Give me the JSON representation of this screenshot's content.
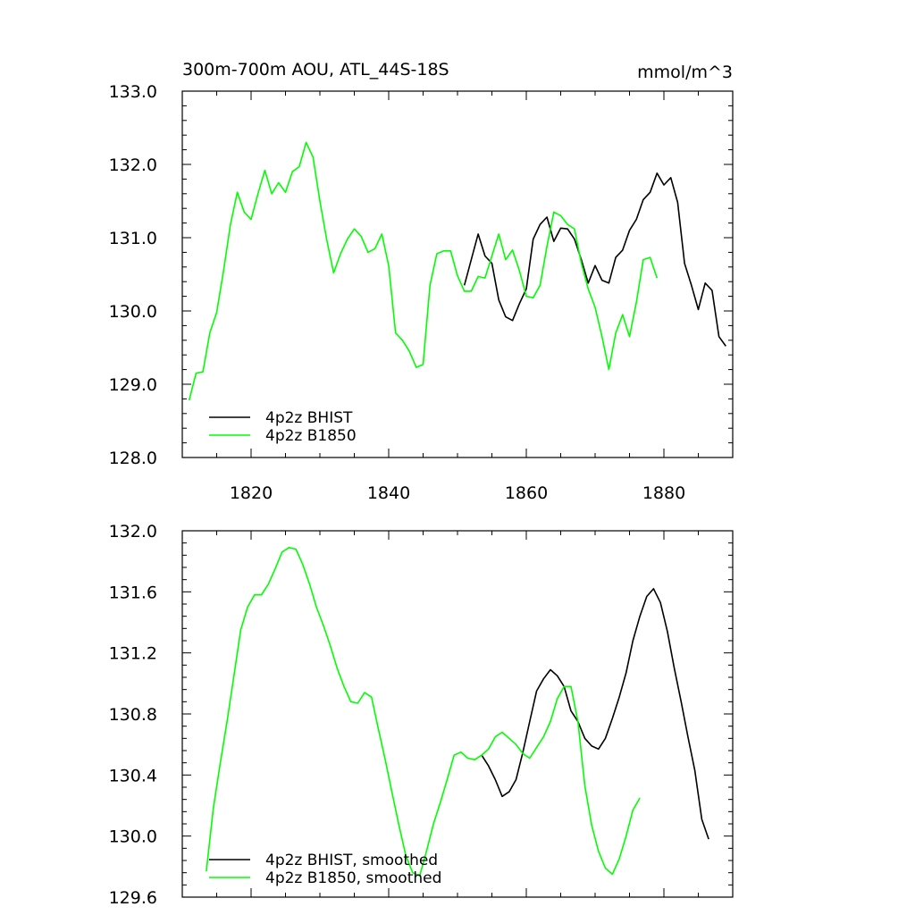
{
  "figure": {
    "title_left": "300m-700m AOU, ATL_44S-18S",
    "title_right": "mmol/m^3"
  },
  "chart_data": [
    {
      "type": "line",
      "xlim": [
        1810,
        1890
      ],
      "ylim": [
        128.0,
        133.0
      ],
      "x_ticks": [
        1820,
        1840,
        1860,
        1880
      ],
      "x_tick_labels": [
        "1820",
        "1840",
        "1860",
        "1880"
      ],
      "y_ticks": [
        128.0,
        129.0,
        130.0,
        131.0,
        132.0,
        133.0
      ],
      "y_tick_labels": [
        "128.0",
        "129.0",
        "130.0",
        "131.0",
        "132.0",
        "133.0"
      ],
      "legend_position": "bottom-left",
      "series": [
        {
          "name": "4p2z BHIST",
          "color": "#000000",
          "x": [
            1851,
            1852,
            1853,
            1854,
            1855,
            1856,
            1857,
            1858,
            1859,
            1860,
            1861,
            1862,
            1863,
            1864,
            1865,
            1866,
            1867,
            1868,
            1869,
            1870,
            1871,
            1872,
            1873,
            1874,
            1875,
            1876,
            1877,
            1878,
            1879,
            1880,
            1881,
            1882,
            1883,
            1884,
            1885,
            1886,
            1887,
            1888,
            1889
          ],
          "y": [
            130.35,
            130.7,
            131.05,
            130.75,
            130.65,
            130.15,
            129.92,
            129.87,
            130.1,
            130.3,
            130.98,
            131.18,
            131.28,
            130.95,
            131.13,
            131.12,
            130.98,
            130.7,
            130.38,
            130.62,
            130.42,
            130.38,
            130.73,
            130.83,
            131.1,
            131.25,
            131.52,
            131.62,
            131.88,
            131.72,
            131.82,
            131.48,
            130.65,
            130.35,
            130.02,
            130.38,
            130.28,
            129.65,
            129.52
          ]
        },
        {
          "name": "4p2z B1850",
          "color": "#00ff00",
          "x": [
            1811,
            1812,
            1813,
            1814,
            1815,
            1816,
            1817,
            1818,
            1819,
            1820,
            1821,
            1822,
            1823,
            1824,
            1825,
            1826,
            1827,
            1828,
            1829,
            1830,
            1831,
            1832,
            1833,
            1834,
            1835,
            1836,
            1837,
            1838,
            1839,
            1840,
            1841,
            1842,
            1843,
            1844,
            1845,
            1846,
            1847,
            1848,
            1849,
            1850,
            1851,
            1852,
            1853,
            1854,
            1855,
            1856,
            1857,
            1858,
            1859,
            1860,
            1861,
            1862,
            1863,
            1864,
            1865,
            1866,
            1867,
            1868,
            1869,
            1870,
            1871,
            1872,
            1873,
            1874,
            1875,
            1876,
            1877,
            1878,
            1879
          ],
          "y": [
            128.78,
            129.15,
            129.17,
            129.7,
            129.98,
            130.55,
            131.18,
            131.62,
            131.35,
            131.25,
            131.6,
            131.92,
            131.6,
            131.75,
            131.62,
            131.9,
            131.97,
            132.3,
            132.1,
            131.5,
            130.97,
            130.52,
            130.78,
            130.98,
            131.12,
            131.02,
            130.8,
            130.85,
            131.05,
            130.62,
            129.7,
            129.6,
            129.45,
            129.23,
            129.27,
            130.35,
            130.78,
            130.82,
            130.82,
            130.48,
            130.27,
            130.27,
            130.47,
            130.45,
            130.75,
            131.05,
            130.7,
            130.83,
            130.55,
            130.2,
            130.18,
            130.35,
            130.88,
            131.35,
            131.3,
            131.18,
            131.12,
            130.65,
            130.3,
            130.05,
            129.65,
            129.2,
            129.7,
            129.95,
            129.65,
            130.12,
            130.7,
            130.73,
            130.45
          ]
        }
      ]
    },
    {
      "type": "line",
      "xlim": [
        1810,
        1890
      ],
      "ylim": [
        129.6,
        132.0
      ],
      "x_ticks": [
        1820,
        1840,
        1860,
        1880
      ],
      "x_tick_labels": [],
      "y_ticks": [
        129.6,
        130.0,
        130.4,
        130.8,
        131.2,
        131.6,
        132.0
      ],
      "y_tick_labels": [
        "129.6",
        "130.0",
        "130.4",
        "130.8",
        "131.2",
        "131.6",
        "132.0"
      ],
      "legend_position": "bottom-left",
      "series": [
        {
          "name": "4p2z BHIST, smoothed",
          "color": "#000000",
          "x": [
            1853.5,
            1854.5,
            1855.5,
            1856.5,
            1857.5,
            1858.5,
            1859.5,
            1860.5,
            1861.5,
            1862.5,
            1863.5,
            1864.5,
            1865.5,
            1866.5,
            1867.5,
            1868.5,
            1869.5,
            1870.5,
            1871.5,
            1872.5,
            1873.5,
            1874.5,
            1875.5,
            1876.5,
            1877.5,
            1878.5,
            1879.5,
            1880.5,
            1881.5,
            1882.5,
            1883.5,
            1884.5,
            1885.5,
            1886.5
          ],
          "y": [
            130.53,
            130.46,
            130.37,
            130.26,
            130.29,
            130.37,
            130.55,
            130.75,
            130.95,
            131.03,
            131.09,
            131.05,
            130.98,
            130.82,
            130.75,
            130.64,
            130.59,
            130.57,
            130.64,
            130.77,
            130.91,
            131.07,
            131.28,
            131.44,
            131.57,
            131.62,
            131.53,
            131.34,
            131.1,
            130.88,
            130.65,
            130.43,
            130.11,
            129.98
          ]
        },
        {
          "name": "4p2z B1850, smoothed",
          "color": "#00ff00",
          "x": [
            1813.5,
            1814.5,
            1815.5,
            1816.5,
            1817.5,
            1818.5,
            1819.5,
            1820.5,
            1821.5,
            1822.5,
            1823.5,
            1824.5,
            1825.5,
            1826.5,
            1827.5,
            1828.5,
            1829.5,
            1830.5,
            1831.5,
            1832.5,
            1833.5,
            1834.5,
            1835.5,
            1836.5,
            1837.5,
            1838.5,
            1839.5,
            1840.5,
            1841.5,
            1842.5,
            1843.5,
            1844.5,
            1845.5,
            1846.5,
            1847.5,
            1848.5,
            1849.5,
            1850.5,
            1851.5,
            1852.5,
            1853.5,
            1854.5,
            1855.5,
            1856.5,
            1857.5,
            1858.5,
            1859.5,
            1860.5,
            1861.5,
            1862.5,
            1863.5,
            1864.5,
            1865.5,
            1866.5,
            1867.5,
            1868.5,
            1869.5,
            1870.5,
            1871.5,
            1872.5,
            1873.5,
            1874.5,
            1875.5,
            1876.5
          ],
          "y": [
            129.77,
            130.18,
            130.47,
            130.75,
            131.05,
            131.35,
            131.5,
            131.58,
            131.58,
            131.65,
            131.75,
            131.86,
            131.89,
            131.88,
            131.78,
            131.65,
            131.5,
            131.38,
            131.25,
            131.1,
            130.98,
            130.88,
            130.87,
            130.94,
            130.91,
            130.7,
            130.5,
            130.28,
            130.07,
            129.87,
            129.76,
            129.74,
            129.9,
            130.08,
            130.22,
            130.37,
            130.53,
            130.55,
            130.51,
            130.5,
            130.53,
            130.57,
            130.65,
            130.68,
            130.64,
            130.6,
            130.54,
            130.51,
            130.58,
            130.65,
            130.75,
            130.9,
            130.98,
            130.98,
            130.75,
            130.33,
            130.07,
            129.9,
            129.79,
            129.75,
            129.85,
            130.0,
            130.17,
            130.25
          ]
        }
      ]
    }
  ]
}
